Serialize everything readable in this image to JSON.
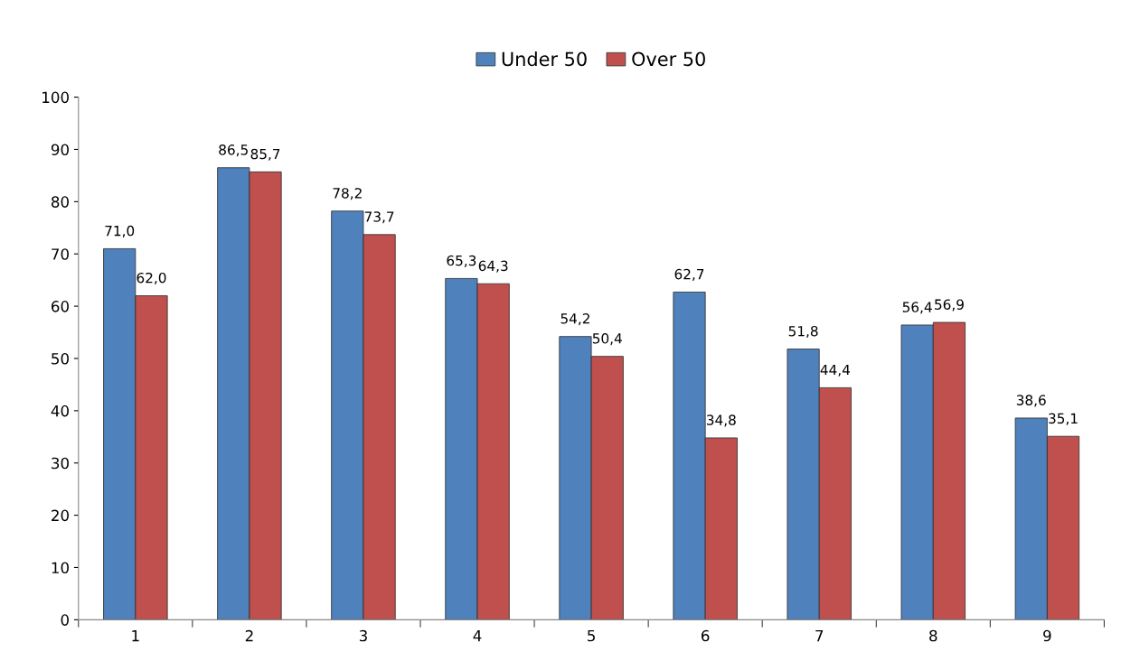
{
  "chart_data": {
    "type": "bar",
    "categories": [
      "1",
      "2",
      "3",
      "4",
      "5",
      "6",
      "7",
      "8",
      "9"
    ],
    "series": [
      {
        "name": "Under 50",
        "color": "#4f81bd",
        "values": [
          71.0,
          86.5,
          78.2,
          65.3,
          54.2,
          62.7,
          51.8,
          56.4,
          38.6
        ],
        "value_labels": [
          "71,0",
          "86,5",
          "78,2",
          "65,3",
          "54,2",
          "62,7",
          "51,8",
          "56,4",
          "38,6"
        ]
      },
      {
        "name": "Over 50",
        "color": "#c0504d",
        "values": [
          62.0,
          85.7,
          73.7,
          64.3,
          50.4,
          34.8,
          44.4,
          56.9,
          35.1
        ],
        "value_labels": [
          "62,0",
          "85,7",
          "73,7",
          "64,3",
          "50,4",
          "34,8",
          "44,4",
          "56,9",
          "35,1"
        ]
      }
    ],
    "ylim": [
      0,
      100
    ],
    "yticks": [
      0,
      10,
      20,
      30,
      40,
      50,
      60,
      70,
      80,
      90,
      100
    ],
    "grid": false,
    "legend": "top"
  }
}
